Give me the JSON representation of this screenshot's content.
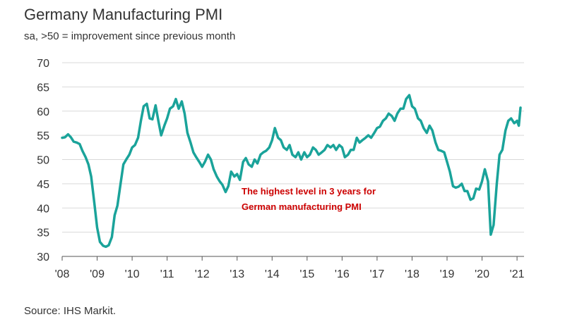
{
  "header": {
    "title": "Germany Manufacturing PMI",
    "subtitle": "sa, >50 = improvement since previous month"
  },
  "footer": {
    "source": "Source: IHS Markit."
  },
  "colors": {
    "line": "#1aa39a",
    "grid": "#d9d9d9",
    "axis": "#555555",
    "annotation": "#cc0000"
  },
  "chart_data": {
    "type": "line",
    "title": "Germany Manufacturing PMI",
    "subtitle": "sa, >50 = improvement since previous month",
    "xlabel": "",
    "ylabel": "",
    "ylim": [
      30,
      70
    ],
    "xlim": [
      2008.0,
      2021.2
    ],
    "yticks": [
      30,
      35,
      40,
      45,
      50,
      55,
      60,
      65,
      70
    ],
    "xtick_values": [
      2008,
      2009,
      2010,
      2011,
      2012,
      2013,
      2014,
      2015,
      2016,
      2017,
      2018,
      2019,
      2020,
      2021
    ],
    "xtick_labels": [
      "'08",
      "'09",
      "'10",
      "'11",
      "'12",
      "'13",
      "'14",
      "'15",
      "'16",
      "'17",
      "'18",
      "'19",
      "'20",
      "'21"
    ],
    "grid": "horizontal",
    "legend": "none",
    "annotations": [
      "The highest level in 3 years for",
      "German manufacturing PMI"
    ],
    "series": [
      {
        "points": [
          [
            2008.0,
            54.5
          ],
          [
            2008.08,
            54.6
          ],
          [
            2008.17,
            55.2
          ],
          [
            2008.25,
            54.6
          ],
          [
            2008.33,
            53.7
          ],
          [
            2008.42,
            53.5
          ],
          [
            2008.5,
            53.2
          ],
          [
            2008.58,
            51.8
          ],
          [
            2008.67,
            50.5
          ],
          [
            2008.75,
            49.0
          ],
          [
            2008.83,
            46.5
          ],
          [
            2008.92,
            41.0
          ],
          [
            2009.0,
            36.0
          ],
          [
            2009.08,
            33.0
          ],
          [
            2009.17,
            32.2
          ],
          [
            2009.25,
            32.0
          ],
          [
            2009.33,
            32.3
          ],
          [
            2009.42,
            34.0
          ],
          [
            2009.5,
            38.5
          ],
          [
            2009.58,
            40.5
          ],
          [
            2009.67,
            45.0
          ],
          [
            2009.75,
            49.0
          ],
          [
            2009.83,
            50.0
          ],
          [
            2009.92,
            51.0
          ],
          [
            2010.0,
            52.5
          ],
          [
            2010.08,
            53.0
          ],
          [
            2010.17,
            54.5
          ],
          [
            2010.25,
            58.0
          ],
          [
            2010.33,
            61.0
          ],
          [
            2010.42,
            61.5
          ],
          [
            2010.5,
            58.5
          ],
          [
            2010.58,
            58.3
          ],
          [
            2010.67,
            61.2
          ],
          [
            2010.75,
            58.0
          ],
          [
            2010.83,
            55.0
          ],
          [
            2010.92,
            57.0
          ],
          [
            2011.0,
            58.5
          ],
          [
            2011.08,
            60.5
          ],
          [
            2011.17,
            61.0
          ],
          [
            2011.25,
            62.5
          ],
          [
            2011.33,
            60.5
          ],
          [
            2011.42,
            62.0
          ],
          [
            2011.5,
            59.5
          ],
          [
            2011.58,
            55.5
          ],
          [
            2011.67,
            53.5
          ],
          [
            2011.75,
            51.5
          ],
          [
            2011.83,
            50.5
          ],
          [
            2011.92,
            49.5
          ],
          [
            2012.0,
            48.5
          ],
          [
            2012.08,
            49.5
          ],
          [
            2012.17,
            51.0
          ],
          [
            2012.25,
            50.0
          ],
          [
            2012.33,
            48.0
          ],
          [
            2012.42,
            46.5
          ],
          [
            2012.5,
            45.5
          ],
          [
            2012.58,
            44.8
          ],
          [
            2012.67,
            43.3
          ],
          [
            2012.75,
            44.5
          ],
          [
            2012.83,
            47.5
          ],
          [
            2012.92,
            46.5
          ],
          [
            2013.0,
            47.0
          ],
          [
            2013.08,
            45.8
          ],
          [
            2013.17,
            49.5
          ],
          [
            2013.25,
            50.3
          ],
          [
            2013.33,
            49.0
          ],
          [
            2013.42,
            48.5
          ],
          [
            2013.5,
            50.0
          ],
          [
            2013.58,
            49.2
          ],
          [
            2013.67,
            51.0
          ],
          [
            2013.75,
            51.5
          ],
          [
            2013.83,
            51.8
          ],
          [
            2013.92,
            52.5
          ],
          [
            2014.0,
            54.0
          ],
          [
            2014.08,
            56.5
          ],
          [
            2014.17,
            54.5
          ],
          [
            2014.25,
            54.0
          ],
          [
            2014.33,
            52.5
          ],
          [
            2014.42,
            52.0
          ],
          [
            2014.5,
            53.0
          ],
          [
            2014.58,
            51.0
          ],
          [
            2014.67,
            50.5
          ],
          [
            2014.75,
            51.5
          ],
          [
            2014.83,
            50.0
          ],
          [
            2014.92,
            51.5
          ],
          [
            2015.0,
            50.5
          ],
          [
            2015.08,
            51.0
          ],
          [
            2015.17,
            52.5
          ],
          [
            2015.25,
            52.0
          ],
          [
            2015.33,
            51.0
          ],
          [
            2015.42,
            51.5
          ],
          [
            2015.5,
            52.0
          ],
          [
            2015.58,
            53.0
          ],
          [
            2015.67,
            52.5
          ],
          [
            2015.75,
            53.0
          ],
          [
            2015.83,
            52.0
          ],
          [
            2015.92,
            53.0
          ],
          [
            2016.0,
            52.5
          ],
          [
            2016.08,
            50.5
          ],
          [
            2016.17,
            51.0
          ],
          [
            2016.25,
            52.0
          ],
          [
            2016.33,
            52.0
          ],
          [
            2016.42,
            54.5
          ],
          [
            2016.5,
            53.5
          ],
          [
            2016.58,
            54.0
          ],
          [
            2016.67,
            54.5
          ],
          [
            2016.75,
            55.0
          ],
          [
            2016.83,
            54.5
          ],
          [
            2016.92,
            55.5
          ],
          [
            2017.0,
            56.5
          ],
          [
            2017.08,
            56.8
          ],
          [
            2017.17,
            58.0
          ],
          [
            2017.25,
            58.5
          ],
          [
            2017.33,
            59.5
          ],
          [
            2017.42,
            59.0
          ],
          [
            2017.5,
            58.0
          ],
          [
            2017.58,
            59.5
          ],
          [
            2017.67,
            60.5
          ],
          [
            2017.75,
            60.5
          ],
          [
            2017.83,
            62.5
          ],
          [
            2017.92,
            63.3
          ],
          [
            2018.0,
            61.0
          ],
          [
            2018.08,
            60.5
          ],
          [
            2018.17,
            58.5
          ],
          [
            2018.25,
            58.0
          ],
          [
            2018.33,
            56.5
          ],
          [
            2018.42,
            55.5
          ],
          [
            2018.5,
            57.0
          ],
          [
            2018.58,
            56.0
          ],
          [
            2018.67,
            53.5
          ],
          [
            2018.75,
            52.0
          ],
          [
            2018.83,
            51.8
          ],
          [
            2018.92,
            51.5
          ],
          [
            2019.0,
            49.5
          ],
          [
            2019.08,
            47.5
          ],
          [
            2019.17,
            44.5
          ],
          [
            2019.25,
            44.2
          ],
          [
            2019.33,
            44.4
          ],
          [
            2019.42,
            45.0
          ],
          [
            2019.5,
            43.5
          ],
          [
            2019.58,
            43.5
          ],
          [
            2019.67,
            41.7
          ],
          [
            2019.75,
            42.0
          ],
          [
            2019.83,
            44.0
          ],
          [
            2019.92,
            43.8
          ],
          [
            2020.0,
            45.5
          ],
          [
            2020.08,
            48.0
          ],
          [
            2020.17,
            45.5
          ],
          [
            2020.25,
            34.5
          ],
          [
            2020.33,
            36.5
          ],
          [
            2020.42,
            45.0
          ],
          [
            2020.5,
            51.0
          ],
          [
            2020.58,
            52.0
          ],
          [
            2020.67,
            56.0
          ],
          [
            2020.75,
            58.0
          ],
          [
            2020.83,
            58.5
          ],
          [
            2020.92,
            57.5
          ],
          [
            2021.0,
            58.0
          ],
          [
            2021.05,
            57.0
          ],
          [
            2021.1,
            60.7
          ]
        ]
      }
    ]
  }
}
